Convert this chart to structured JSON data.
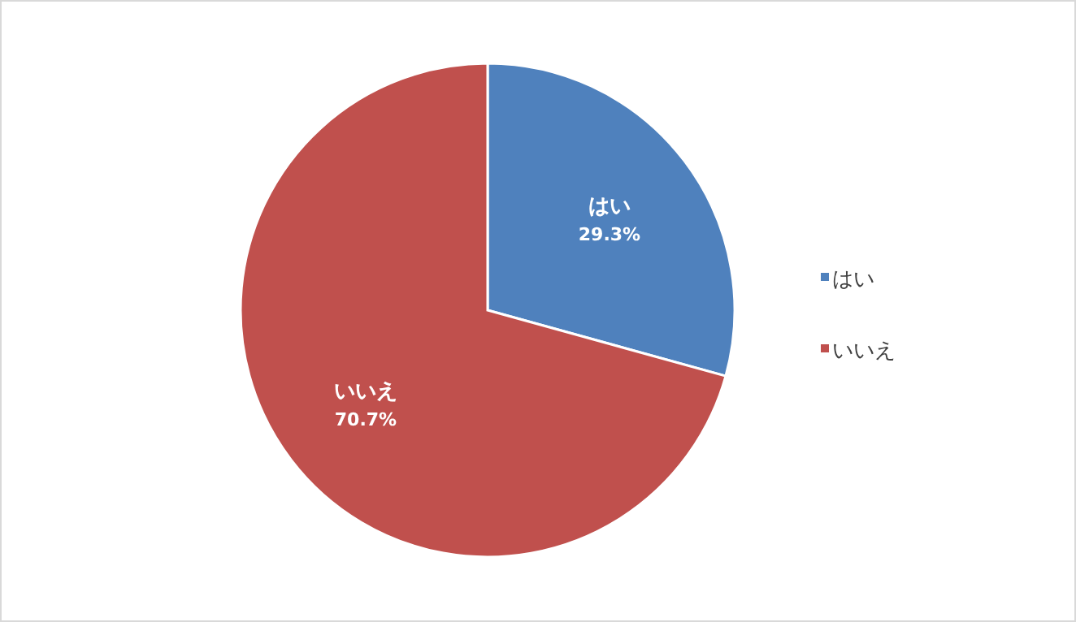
{
  "chart_data": {
    "type": "pie",
    "categories": [
      "はい",
      "いいえ"
    ],
    "values": [
      29.3,
      70.7
    ],
    "value_labels": [
      "29.3%",
      "70.7%"
    ],
    "colors": [
      "#4f81bd",
      "#c0504d"
    ],
    "legend": "right"
  }
}
